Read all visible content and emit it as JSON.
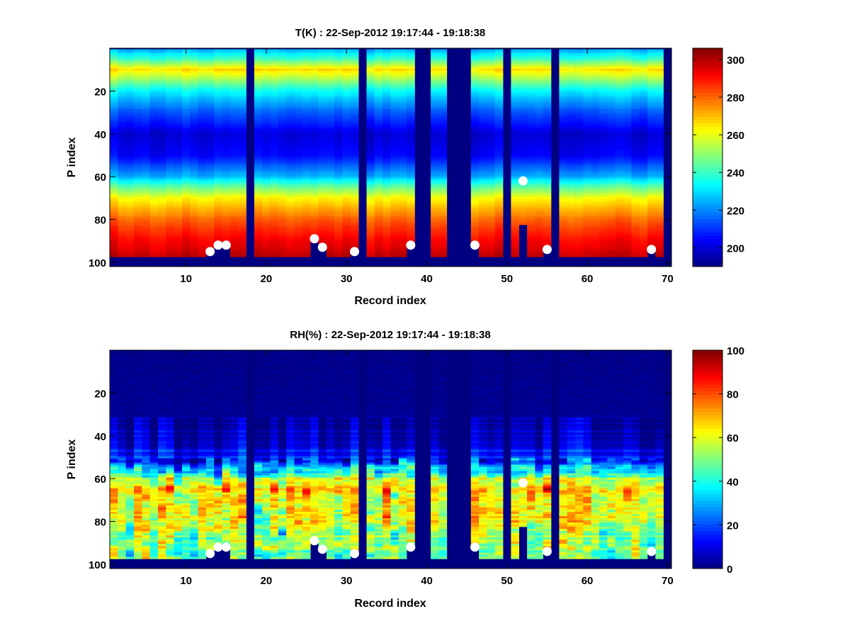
{
  "chart_data": [
    {
      "type": "heatmap",
      "title": "T(K) : 22-Sep-2012 19:17:44 - 19:18:38",
      "xlabel": "Record index",
      "ylabel": "P index",
      "xlim": [
        0.5,
        70.5
      ],
      "ylim": [
        0,
        102
      ],
      "y_reversed": true,
      "xticks": [
        10,
        20,
        30,
        40,
        50,
        60,
        70
      ],
      "yticks": [
        20,
        40,
        60,
        80,
        100
      ],
      "records": 70,
      "levels": 101,
      "colormap": "jet",
      "clim": [
        190,
        306
      ],
      "colorbar_ticks": [
        200,
        220,
        240,
        260,
        280,
        300
      ],
      "profile_p": [
        1,
        5,
        10,
        15,
        20,
        30,
        40,
        50,
        60,
        65,
        70,
        80,
        90,
        97
      ],
      "profile_values": [
        226,
        240,
        266,
        250,
        233,
        214,
        200,
        204,
        225,
        245,
        262,
        280,
        292,
        298
      ],
      "column_jitter": 3,
      "cell_noise": 2,
      "seed": 7
    },
    {
      "type": "heatmap",
      "title": "RH(%) : 22-Sep-2012 19:17:44 - 19:18:38",
      "xlabel": "Record index",
      "ylabel": "P index",
      "xlim": [
        0.5,
        70.5
      ],
      "ylim": [
        0,
        102
      ],
      "y_reversed": true,
      "xticks": [
        10,
        20,
        30,
        40,
        50,
        60,
        70
      ],
      "yticks": [
        20,
        40,
        60,
        80,
        100
      ],
      "records": 70,
      "levels": 101,
      "colormap": "jet",
      "clim": [
        0,
        100
      ],
      "colorbar_ticks": [
        0,
        20,
        40,
        60,
        80,
        100
      ],
      "profile_p": [
        1,
        30,
        35,
        45,
        52,
        57,
        60,
        65,
        70,
        80,
        90,
        97
      ],
      "profile_values": [
        0,
        1,
        6,
        12,
        20,
        38,
        58,
        68,
        60,
        62,
        50,
        52
      ],
      "column_jitter": 8,
      "cell_noise": 18,
      "seed": 13
    }
  ],
  "shared": {
    "missing_records": [
      18,
      32,
      39,
      40,
      43,
      44,
      45,
      50,
      56,
      70
    ],
    "last_valid_level": 97,
    "partial_cutoffs": [
      {
        "record": 52,
        "level": 83
      }
    ],
    "markers": [
      {
        "record": 13,
        "level": 95
      },
      {
        "record": 14,
        "level": 92
      },
      {
        "record": 15,
        "level": 92
      },
      {
        "record": 26,
        "level": 89
      },
      {
        "record": 27,
        "level": 93
      },
      {
        "record": 31,
        "level": 95
      },
      {
        "record": 38,
        "level": 92
      },
      {
        "record": 46,
        "level": 92
      },
      {
        "record": 52,
        "level": 62
      },
      {
        "record": 55,
        "level": 94
      },
      {
        "record": 68,
        "level": 94
      }
    ],
    "marker_color": "#ffffff"
  }
}
